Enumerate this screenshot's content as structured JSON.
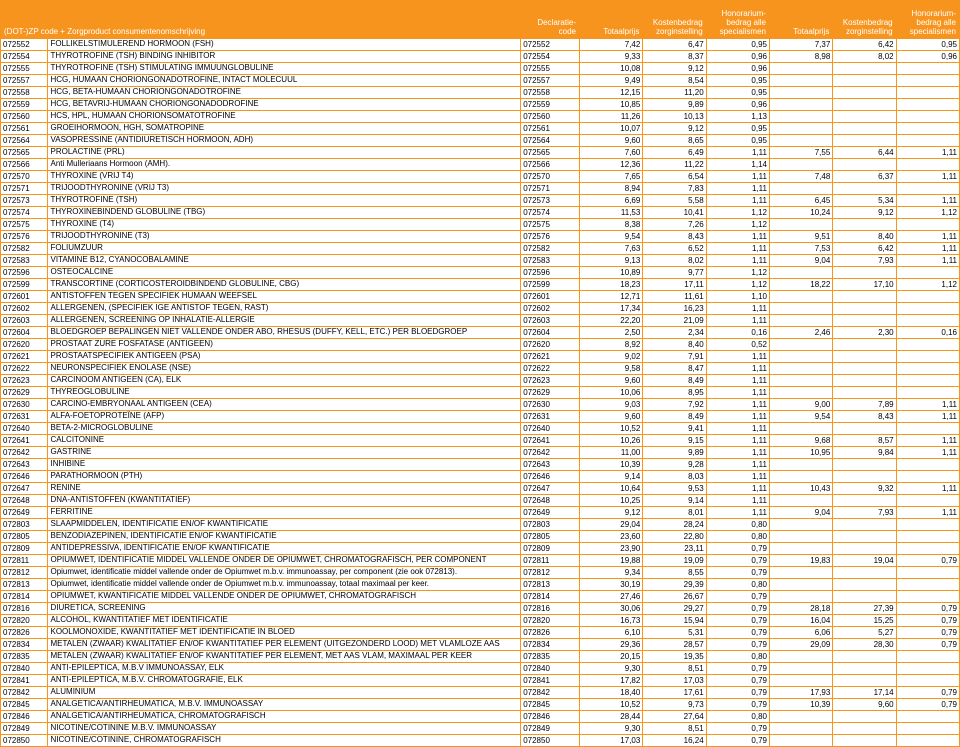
{
  "header": {
    "col1": "(DOT-)ZP code + Zorgproduct consumentenomschrijving",
    "decl_code": "Declaratie-code",
    "totaalprijs": "Totaalprijs",
    "kosten": "Kostenbedrag zorginstelling",
    "honorarium": "Honorarium-bedrag alle specialismen"
  },
  "colors": {
    "accent": "#f7941d",
    "header_text": "#ffffff",
    "body_text": "#000000",
    "background": "#ffffff"
  },
  "rows": [
    [
      "072552",
      "FOLLIKELSTIMULEREND HORMOON (FSH)",
      "072552",
      "7,42",
      "6,47",
      "0,95",
      "7,37",
      "6,42",
      "0,95"
    ],
    [
      "072554",
      "THYROTROFINE (TSH) BINDING INHIBITOR",
      "072554",
      "9,33",
      "8,37",
      "0,96",
      "8,98",
      "8,02",
      "0,96"
    ],
    [
      "072555",
      "THYROTROFINE (TSH) STIMULATING IMMUUNGLOBULINE",
      "072555",
      "10,08",
      "9,12",
      "0,96",
      "",
      "",
      ""
    ],
    [
      "072557",
      "HCG, HUMAAN CHORIONGONADOTROFINE, INTACT MOLECUUL",
      "072557",
      "9,49",
      "8,54",
      "0,95",
      "",
      "",
      ""
    ],
    [
      "072558",
      "HCG, BETA-HUMAAN CHORIONGONADOTROFINE",
      "072558",
      "12,15",
      "11,20",
      "0,95",
      "",
      "",
      ""
    ],
    [
      "072559",
      "HCG, BETAVRIJ-HUMAAN CHORIONGONADODROFINE",
      "072559",
      "10,85",
      "9,89",
      "0,96",
      "",
      "",
      ""
    ],
    [
      "072560",
      "HCS, HPL, HUMAAN CHORIONSOMATOTROFINE",
      "072560",
      "11,26",
      "10,13",
      "1,13",
      "",
      "",
      ""
    ],
    [
      "072561",
      "GROEIHORMOON, HGH, SOMATROPINE",
      "072561",
      "10,07",
      "9,12",
      "0,95",
      "",
      "",
      ""
    ],
    [
      "072564",
      "VASOPRESSINE (ANTIDIURETISCH HORMOON, ADH)",
      "072564",
      "9,60",
      "8,65",
      "0,95",
      "",
      "",
      ""
    ],
    [
      "072565",
      "PROLACTINE (PRL)",
      "072565",
      "7,60",
      "6,49",
      "1,11",
      "7,55",
      "6,44",
      "1,11"
    ],
    [
      "072566",
      "Anti Mulleriaans Hormoon (AMH).",
      "072566",
      "12,36",
      "11,22",
      "1,14",
      "",
      "",
      ""
    ],
    [
      "072570",
      "THYROXINE (VRIJ T4)",
      "072570",
      "7,65",
      "6,54",
      "1,11",
      "7,48",
      "6,37",
      "1,11"
    ],
    [
      "072571",
      "TRIJOODTHYRONINE (VRIJ T3)",
      "072571",
      "8,94",
      "7,83",
      "1,11",
      "",
      "",
      ""
    ],
    [
      "072573",
      "THYROTROFINE (TSH)",
      "072573",
      "6,69",
      "5,58",
      "1,11",
      "6,45",
      "5,34",
      "1,11"
    ],
    [
      "072574",
      "THYROXINEBINDEND GLOBULINE (TBG)",
      "072574",
      "11,53",
      "10,41",
      "1,12",
      "10,24",
      "9,12",
      "1,12"
    ],
    [
      "072575",
      "THYROXINE (T4)",
      "072575",
      "8,38",
      "7,26",
      "1,12",
      "",
      "",
      ""
    ],
    [
      "072576",
      "TRIJOODTHYRONINE (T3)",
      "072576",
      "9,54",
      "8,43",
      "1,11",
      "9,51",
      "8,40",
      "1,11"
    ],
    [
      "072582",
      "FOLIUMZUUR",
      "072582",
      "7,63",
      "6,52",
      "1,11",
      "7,53",
      "6,42",
      "1,11"
    ],
    [
      "072583",
      "VITAMINE B12, CYANOCOBALAMINE",
      "072583",
      "9,13",
      "8,02",
      "1,11",
      "9,04",
      "7,93",
      "1,11"
    ],
    [
      "072596",
      "OSTEOCALCINE",
      "072596",
      "10,89",
      "9,77",
      "1,12",
      "",
      "",
      ""
    ],
    [
      "072599",
      "TRANSCORTINE (CORTICOSTEROIDBINDEND GLOBULINE, CBG)",
      "072599",
      "18,23",
      "17,11",
      "1,12",
      "18,22",
      "17,10",
      "1,12"
    ],
    [
      "072601",
      "ANTISTOFFEN TEGEN SPECIFIEK HUMAAN WEEFSEL",
      "072601",
      "12,71",
      "11,61",
      "1,10",
      "",
      "",
      ""
    ],
    [
      "072602",
      "ALLERGENEN, (SPECIFIEK IGE ANTISTOF TEGEN, RAST)",
      "072602",
      "17,34",
      "16,23",
      "1,11",
      "",
      "",
      ""
    ],
    [
      "072603",
      "ALLERGENEN, SCREENING OP INHALATIE-ALLERGIE",
      "072603",
      "22,20",
      "21,09",
      "1,11",
      "",
      "",
      ""
    ],
    [
      "072604",
      "BLOEDGROEP BEPALINGEN NIET VALLENDE ONDER ABO, RHESUS (DUFFY, KELL, ETC.) PER BLOEDGROEP",
      "072604",
      "2,50",
      "2,34",
      "0,16",
      "2,46",
      "2,30",
      "0,16"
    ],
    [
      "072620",
      "PROSTAAT ZURE FOSFATASE (ANTIGEEN)",
      "072620",
      "8,92",
      "8,40",
      "0,52",
      "",
      "",
      ""
    ],
    [
      "072621",
      "PROSTAATSPECIFIEK ANTIGEEN (PSA)",
      "072621",
      "9,02",
      "7,91",
      "1,11",
      "",
      "",
      ""
    ],
    [
      "072622",
      "NEURONSPECIFIEK ENOLASE (NSE)",
      "072622",
      "9,58",
      "8,47",
      "1,11",
      "",
      "",
      ""
    ],
    [
      "072623",
      "CARCINOOM ANTIGEEN (CA), ELK",
      "072623",
      "9,60",
      "8,49",
      "1,11",
      "",
      "",
      ""
    ],
    [
      "072629",
      "THYREOGLOBULINE",
      "072629",
      "10,06",
      "8,95",
      "1,11",
      "",
      "",
      ""
    ],
    [
      "072630",
      "CARCINO-EMBRYONAAL ANTIGEEN (CEA)",
      "072630",
      "9,03",
      "7,92",
      "1,11",
      "9,00",
      "7,89",
      "1,11"
    ],
    [
      "072631",
      "ALFA-FOETOPROTEÏNE (AFP)",
      "072631",
      "9,60",
      "8,49",
      "1,11",
      "9,54",
      "8,43",
      "1,11"
    ],
    [
      "072640",
      "BETA-2-MICROGLOBULINE",
      "072640",
      "10,52",
      "9,41",
      "1,11",
      "",
      "",
      ""
    ],
    [
      "072641",
      "CALCITONINE",
      "072641",
      "10,26",
      "9,15",
      "1,11",
      "9,68",
      "8,57",
      "1,11"
    ],
    [
      "072642",
      "GASTRINE",
      "072642",
      "11,00",
      "9,89",
      "1,11",
      "10,95",
      "9,84",
      "1,11"
    ],
    [
      "072643",
      "INHIBINE",
      "072643",
      "10,39",
      "9,28",
      "1,11",
      "",
      "",
      ""
    ],
    [
      "072646",
      "PARATHORMOON (PTH)",
      "072646",
      "9,14",
      "8,03",
      "1,11",
      "",
      "",
      ""
    ],
    [
      "072647",
      "RENINE",
      "072647",
      "10,64",
      "9,53",
      "1,11",
      "10,43",
      "9,32",
      "1,11"
    ],
    [
      "072648",
      "DNA-ANTISTOFFEN (KWANTITATIEF)",
      "072648",
      "10,25",
      "9,14",
      "1,11",
      "",
      "",
      ""
    ],
    [
      "072649",
      "FERRITINE",
      "072649",
      "9,12",
      "8,01",
      "1,11",
      "9,04",
      "7,93",
      "1,11"
    ],
    [
      "072803",
      "SLAAPMIDDELEN, IDENTIFICATIE EN/OF KWANTIFICATIE",
      "072803",
      "29,04",
      "28,24",
      "0,80",
      "",
      "",
      ""
    ],
    [
      "072805",
      "BENZODIAZEPINEN, IDENTIFICATIE EN/OF KWANTIFICATIE",
      "072805",
      "23,60",
      "22,80",
      "0,80",
      "",
      "",
      ""
    ],
    [
      "072809",
      "ANTIDEPRESSIVA, IDENTIFICATIE EN/OF KWANTIFICATIE",
      "072809",
      "23,90",
      "23,11",
      "0,79",
      "",
      "",
      ""
    ],
    [
      "072811",
      "OPIUMWET, IDENTIFICATIE MIDDEL VALLENDE ONDER DE OPIUMWET, CHROMATOGRAFISCH, PER COMPONENT",
      "072811",
      "19,88",
      "19,09",
      "0,79",
      "19,83",
      "19,04",
      "0,79"
    ],
    [
      "072812",
      "Opiumwet, identificatie middel vallende onder de Opiumwet m.b.v. immunoassay, per component (zie ook 072813).",
      "072812",
      "9,34",
      "8,55",
      "0,79",
      "",
      "",
      ""
    ],
    [
      "072813",
      "Opiumwet, identificatie middel vallende onder de Opiumwet m.b.v. immunoassay, totaal maximaal per keer.",
      "072813",
      "30,19",
      "29,39",
      "0,80",
      "",
      "",
      ""
    ],
    [
      "072814",
      "OPIUMWET, KWANTIFICATIE MIDDEL VALLENDE ONDER DE OPIUMWET, CHROMATOGRAFISCH",
      "072814",
      "27,46",
      "26,67",
      "0,79",
      "",
      "",
      ""
    ],
    [
      "072816",
      "DIURETICA, SCREENING",
      "072816",
      "30,06",
      "29,27",
      "0,79",
      "28,18",
      "27,39",
      "0,79"
    ],
    [
      "072820",
      "ALCOHOL, KWANTITATIEF MET IDENTIFICATIE",
      "072820",
      "16,73",
      "15,94",
      "0,79",
      "16,04",
      "15,25",
      "0,79"
    ],
    [
      "072826",
      "KOOLMONOXIDE, KWANTITATIEF MET IDENTIFICATIE IN BLOED",
      "072826",
      "6,10",
      "5,31",
      "0,79",
      "6,06",
      "5,27",
      "0,79"
    ],
    [
      "072834",
      "METALEN (ZWAAR) KWALITATIEF EN/OF KWANTITATIEF PER ELEMENT (UITGEZONDERD LOOD) MET VLAMLOZE AAS",
      "072834",
      "29,36",
      "28,57",
      "0,79",
      "29,09",
      "28,30",
      "0,79"
    ],
    [
      "072835",
      "METALEN (ZWAAR) KWALITATIEF EN/OF KWANTITATIEF PER ELEMENT, MET AAS VLAM, MAXIMAAL PER KEER",
      "072835",
      "20,15",
      "19,35",
      "0,80",
      "",
      "",
      ""
    ],
    [
      "072840",
      "ANTI-EPILEPTICA, M.B.V IMMUNOASSAY, ELK",
      "072840",
      "9,30",
      "8,51",
      "0,79",
      "",
      "",
      ""
    ],
    [
      "072841",
      "ANTI-EPILEPTICA, M.B.V. CHROMATOGRAFIE, ELK",
      "072841",
      "17,82",
      "17,03",
      "0,79",
      "",
      "",
      ""
    ],
    [
      "072842",
      "ALUMINIUM",
      "072842",
      "18,40",
      "17,61",
      "0,79",
      "17,93",
      "17,14",
      "0,79"
    ],
    [
      "072845",
      "ANALGETICA/ANTIRHEUMATICA, M.B.V. IMMUNOASSAY",
      "072845",
      "10,52",
      "9,73",
      "0,79",
      "10,39",
      "9,60",
      "0,79"
    ],
    [
      "072846",
      "ANALGETICA/ANTIRHEUMATICA, CHROMATOGRAFISCH",
      "072846",
      "28,44",
      "27,64",
      "0,80",
      "",
      "",
      ""
    ],
    [
      "072849",
      "NICOTINE/COTININE M.B.V. IMMUNOASSAY",
      "072849",
      "9,30",
      "8,51",
      "0,79",
      "",
      "",
      ""
    ],
    [
      "072850",
      "NICOTINE/COTININE, CHROMATOGRAFISCH",
      "072850",
      "17,03",
      "16,24",
      "0,79",
      "",
      "",
      ""
    ]
  ]
}
